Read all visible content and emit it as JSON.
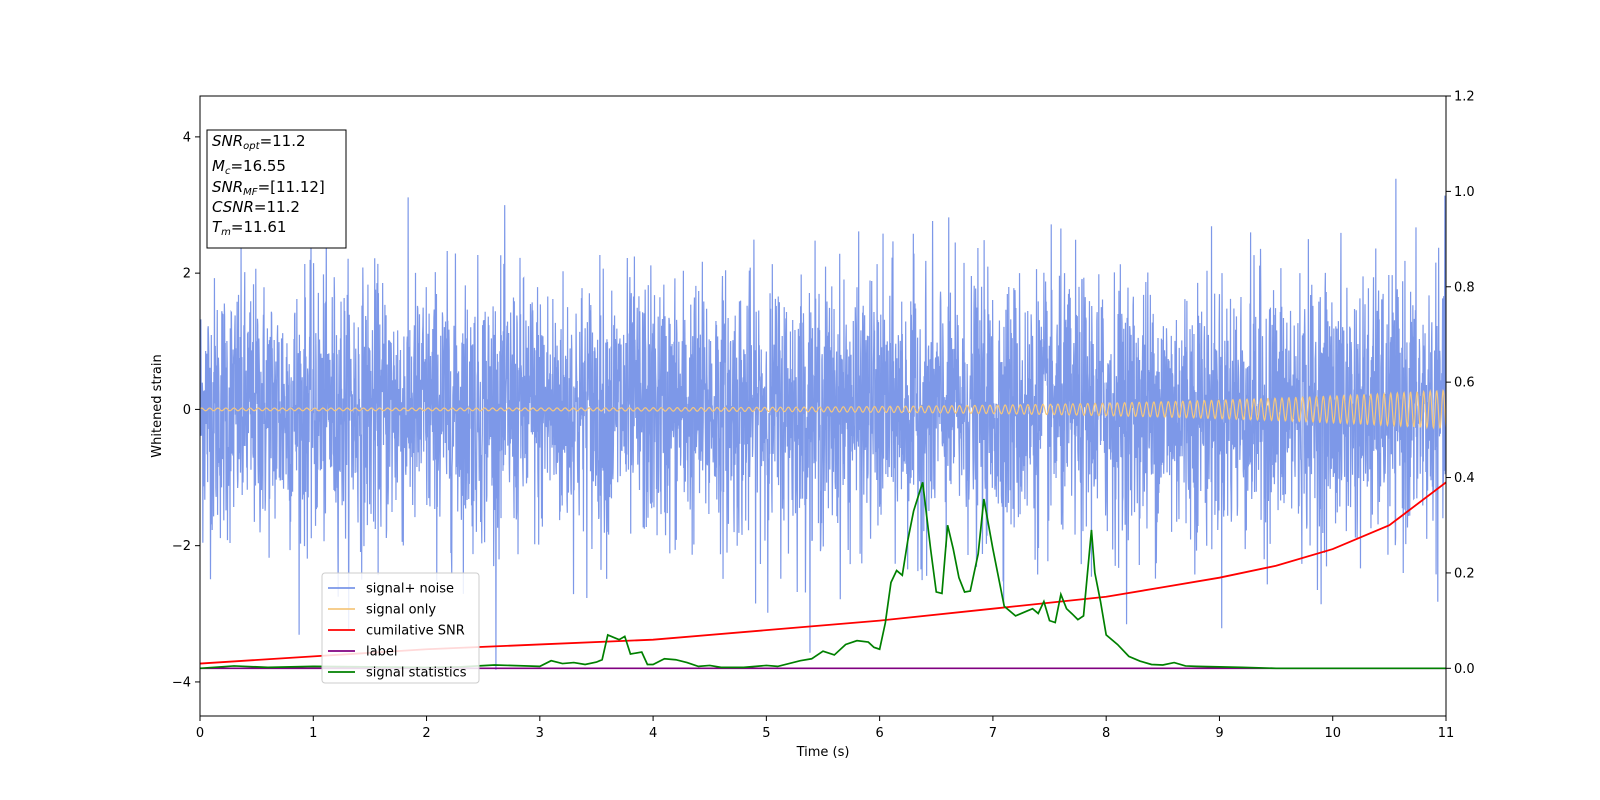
{
  "chart_data": {
    "type": "line",
    "xlabel": "Time (s)",
    "ylabel": "Whitened strain",
    "xlim": [
      0,
      11
    ],
    "ylim": [
      -4.5,
      4.6
    ],
    "y2lim": [
      -0.1,
      1.2
    ],
    "x_ticks": [
      0,
      1,
      2,
      3,
      4,
      5,
      6,
      7,
      8,
      9,
      10,
      11
    ],
    "x_tick_labels": [
      "0",
      "1",
      "2",
      "3",
      "4",
      "5",
      "6",
      "7",
      "8",
      "9",
      "10",
      "11"
    ],
    "y_ticks": [
      -4,
      -2,
      0,
      2,
      4
    ],
    "y_tick_labels": [
      "−4",
      "−2",
      "0",
      "2",
      "4"
    ],
    "y2_ticks": [
      0.0,
      0.2,
      0.4,
      0.6,
      0.8,
      1.0,
      1.2
    ],
    "y2_tick_labels": [
      "0.0",
      "0.2",
      "0.4",
      "0.6",
      "0.8",
      "1.0",
      "1.2"
    ],
    "legend_placement": "lower-left",
    "legend": [
      {
        "label": "signal+ noise",
        "color": "#7a96e8"
      },
      {
        "label": "signal only",
        "color": "#f5c77e"
      },
      {
        "label": "cumilative SNR",
        "color": "#ff0000"
      },
      {
        "label": "label",
        "color": "#800080"
      },
      {
        "label": "signal statistics",
        "color": "#008000"
      }
    ],
    "annotation": {
      "lines": [
        {
          "main": "SNR",
          "sub": "opt",
          "value": "=11.2"
        },
        {
          "main": "M",
          "sub": "c",
          "value": "=16.55"
        },
        {
          "main": "SNR",
          "sub": "MF",
          "value": "=[11.12]"
        },
        {
          "main": "CSNR",
          "sub": "",
          "value": "=11.2"
        },
        {
          "main": "T",
          "sub": "m",
          "value": "=11.61"
        }
      ]
    },
    "series": [
      {
        "name": "signal+ noise",
        "axis": "left",
        "color": "#7a96e8",
        "description_stats": {
          "approx_range": [
            -4.1,
            4.2
          ],
          "typical_envelope": [
            -2.3,
            2.3
          ]
        }
      },
      {
        "name": "signal only",
        "axis": "left",
        "color": "#f5c77e",
        "amplitude_start": 0.02,
        "amplitude_end": 0.28
      },
      {
        "name": "cumilative SNR",
        "axis": "right",
        "color": "#ff0000",
        "x": [
          0,
          1,
          2,
          3,
          4,
          5,
          6,
          7,
          8,
          8.5,
          9,
          9.5,
          10,
          10.5,
          11
        ],
        "y": [
          0.01,
          0.025,
          0.04,
          0.05,
          0.06,
          0.08,
          0.1,
          0.125,
          0.15,
          0.17,
          0.19,
          0.215,
          0.25,
          0.3,
          0.39
        ]
      },
      {
        "name": "label",
        "axis": "right",
        "color": "#800080",
        "x": [
          0,
          11
        ],
        "y": [
          0,
          0
        ]
      },
      {
        "name": "signal statistics",
        "axis": "right",
        "color": "#008000",
        "x": [
          0,
          0.3,
          0.6,
          1.0,
          1.5,
          2.0,
          2.3,
          2.6,
          3.0,
          3.1,
          3.2,
          3.3,
          3.4,
          3.5,
          3.55,
          3.6,
          3.7,
          3.75,
          3.8,
          3.9,
          3.95,
          4.0,
          4.1,
          4.2,
          4.3,
          4.4,
          4.5,
          4.6,
          4.8,
          5.0,
          5.1,
          5.3,
          5.4,
          5.5,
          5.6,
          5.7,
          5.8,
          5.9,
          5.95,
          6.0,
          6.05,
          6.1,
          6.15,
          6.2,
          6.25,
          6.3,
          6.38,
          6.45,
          6.5,
          6.55,
          6.6,
          6.65,
          6.7,
          6.75,
          6.8,
          6.87,
          6.92,
          7.0,
          7.1,
          7.2,
          7.3,
          7.35,
          7.4,
          7.45,
          7.5,
          7.55,
          7.6,
          7.65,
          7.7,
          7.75,
          7.8,
          7.87,
          7.9,
          7.95,
          8.0,
          8.1,
          8.2,
          8.3,
          8.4,
          8.5,
          8.6,
          8.7,
          8.8,
          9.0,
          9.2,
          9.5,
          10.0,
          11.0
        ],
        "y": [
          0.0,
          0.005,
          0.002,
          0.004,
          0.003,
          0.002,
          0.003,
          0.007,
          0.004,
          0.016,
          0.01,
          0.012,
          0.008,
          0.013,
          0.018,
          0.07,
          0.06,
          0.067,
          0.03,
          0.034,
          0.008,
          0.008,
          0.02,
          0.018,
          0.012,
          0.004,
          0.006,
          0.002,
          0.002,
          0.006,
          0.004,
          0.016,
          0.02,
          0.036,
          0.028,
          0.05,
          0.058,
          0.055,
          0.044,
          0.04,
          0.095,
          0.18,
          0.205,
          0.195,
          0.27,
          0.33,
          0.39,
          0.25,
          0.16,
          0.157,
          0.3,
          0.25,
          0.19,
          0.16,
          0.162,
          0.24,
          0.355,
          0.25,
          0.13,
          0.11,
          0.12,
          0.125,
          0.115,
          0.14,
          0.1,
          0.096,
          0.155,
          0.125,
          0.114,
          0.102,
          0.11,
          0.29,
          0.2,
          0.14,
          0.07,
          0.05,
          0.025,
          0.015,
          0.008,
          0.007,
          0.012,
          0.005,
          0.004,
          0.003,
          0.002,
          0.0,
          0.0,
          0.0
        ]
      }
    ]
  }
}
